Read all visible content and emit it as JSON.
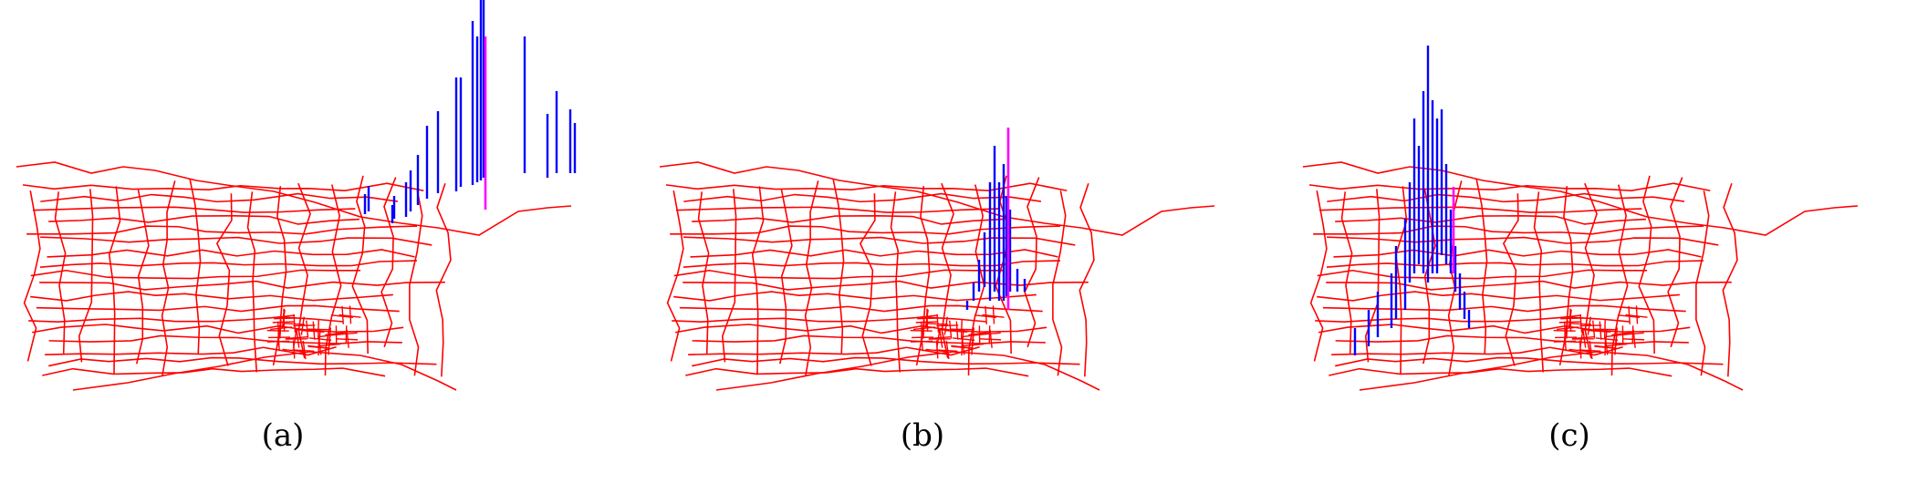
{
  "colors": {
    "road": "#ff0000",
    "bar": "#0000ff",
    "highlight": "#ff00ff",
    "background": "#ffffff"
  },
  "panels": [
    {
      "id": "a",
      "caption": "(a)"
    },
    {
      "id": "b",
      "caption": "(b)"
    },
    {
      "id": "c",
      "caption": "(c)"
    }
  ]
}
